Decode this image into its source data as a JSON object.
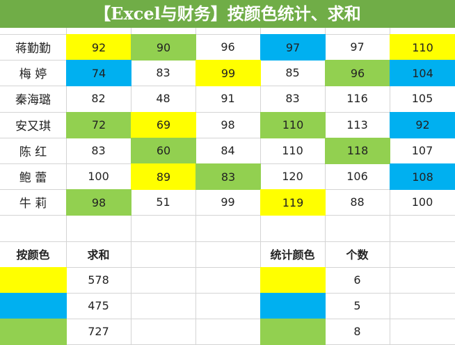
{
  "header": {
    "title": "【Excel与财务】按颜色统计、求和"
  },
  "table": {
    "rows": [
      {
        "name": "蒋勤勤",
        "cells": [
          {
            "value": 92,
            "color": "#ffff00"
          },
          {
            "value": 90,
            "color": "#92d050"
          },
          {
            "value": 96
          },
          {
            "value": 97,
            "color": "#00b0f0"
          },
          {
            "value": 97
          },
          {
            "value": 110,
            "color": "#ffff00"
          }
        ]
      },
      {
        "name": "梅 婷",
        "cells": [
          {
            "value": 74,
            "color": "#00b0f0"
          },
          {
            "value": 83
          },
          {
            "value": 99,
            "color": "#ffff00"
          },
          {
            "value": 85
          },
          {
            "value": 96,
            "color": "#92d050"
          },
          {
            "value": 104,
            "color": "#00b0f0"
          }
        ]
      },
      {
        "name": "秦海璐",
        "cells": [
          {
            "value": 82
          },
          {
            "value": 48
          },
          {
            "value": 91
          },
          {
            "value": 83
          },
          {
            "value": 116
          },
          {
            "value": 105
          }
        ]
      },
      {
        "name": "安又琪",
        "cells": [
          {
            "value": 72,
            "color": "#92d050"
          },
          {
            "value": 69,
            "color": "#ffff00"
          },
          {
            "value": 98
          },
          {
            "value": 110,
            "color": "#92d050"
          },
          {
            "value": 113
          },
          {
            "value": 92,
            "color": "#00b0f0"
          }
        ]
      },
      {
        "name": "陈 红",
        "cells": [
          {
            "value": 83
          },
          {
            "value": 60,
            "color": "#92d050"
          },
          {
            "value": 84
          },
          {
            "value": 110
          },
          {
            "value": 118,
            "color": "#92d050"
          },
          {
            "value": 107
          }
        ]
      },
      {
        "name": "鲍 蕾",
        "cells": [
          {
            "value": 100
          },
          {
            "value": 89,
            "color": "#ffff00"
          },
          {
            "value": 83,
            "color": "#92d050"
          },
          {
            "value": 120
          },
          {
            "value": 106
          },
          {
            "value": 108,
            "color": "#00b0f0"
          }
        ]
      },
      {
        "name": "牛 莉",
        "cells": [
          {
            "value": 98,
            "color": "#92d050"
          },
          {
            "value": 51
          },
          {
            "value": 99
          },
          {
            "value": 119,
            "color": "#ffff00"
          },
          {
            "value": 88
          },
          {
            "value": 100
          }
        ]
      }
    ]
  },
  "summary": {
    "headers": [
      "按颜色",
      "求和"
    ],
    "rows": [
      {
        "color": "#ffff00",
        "sum": 578
      },
      {
        "color": "#00b0f0",
        "sum": 475
      },
      {
        "color": "#92d050",
        "sum": 727
      }
    ]
  },
  "count": {
    "headers": [
      "统计颜色",
      "个数"
    ],
    "rows": [
      {
        "color": "#ffff00",
        "count": 6
      },
      {
        "color": "#00b0f0",
        "count": 5
      },
      {
        "color": "#92d050",
        "count": 8
      }
    ]
  }
}
